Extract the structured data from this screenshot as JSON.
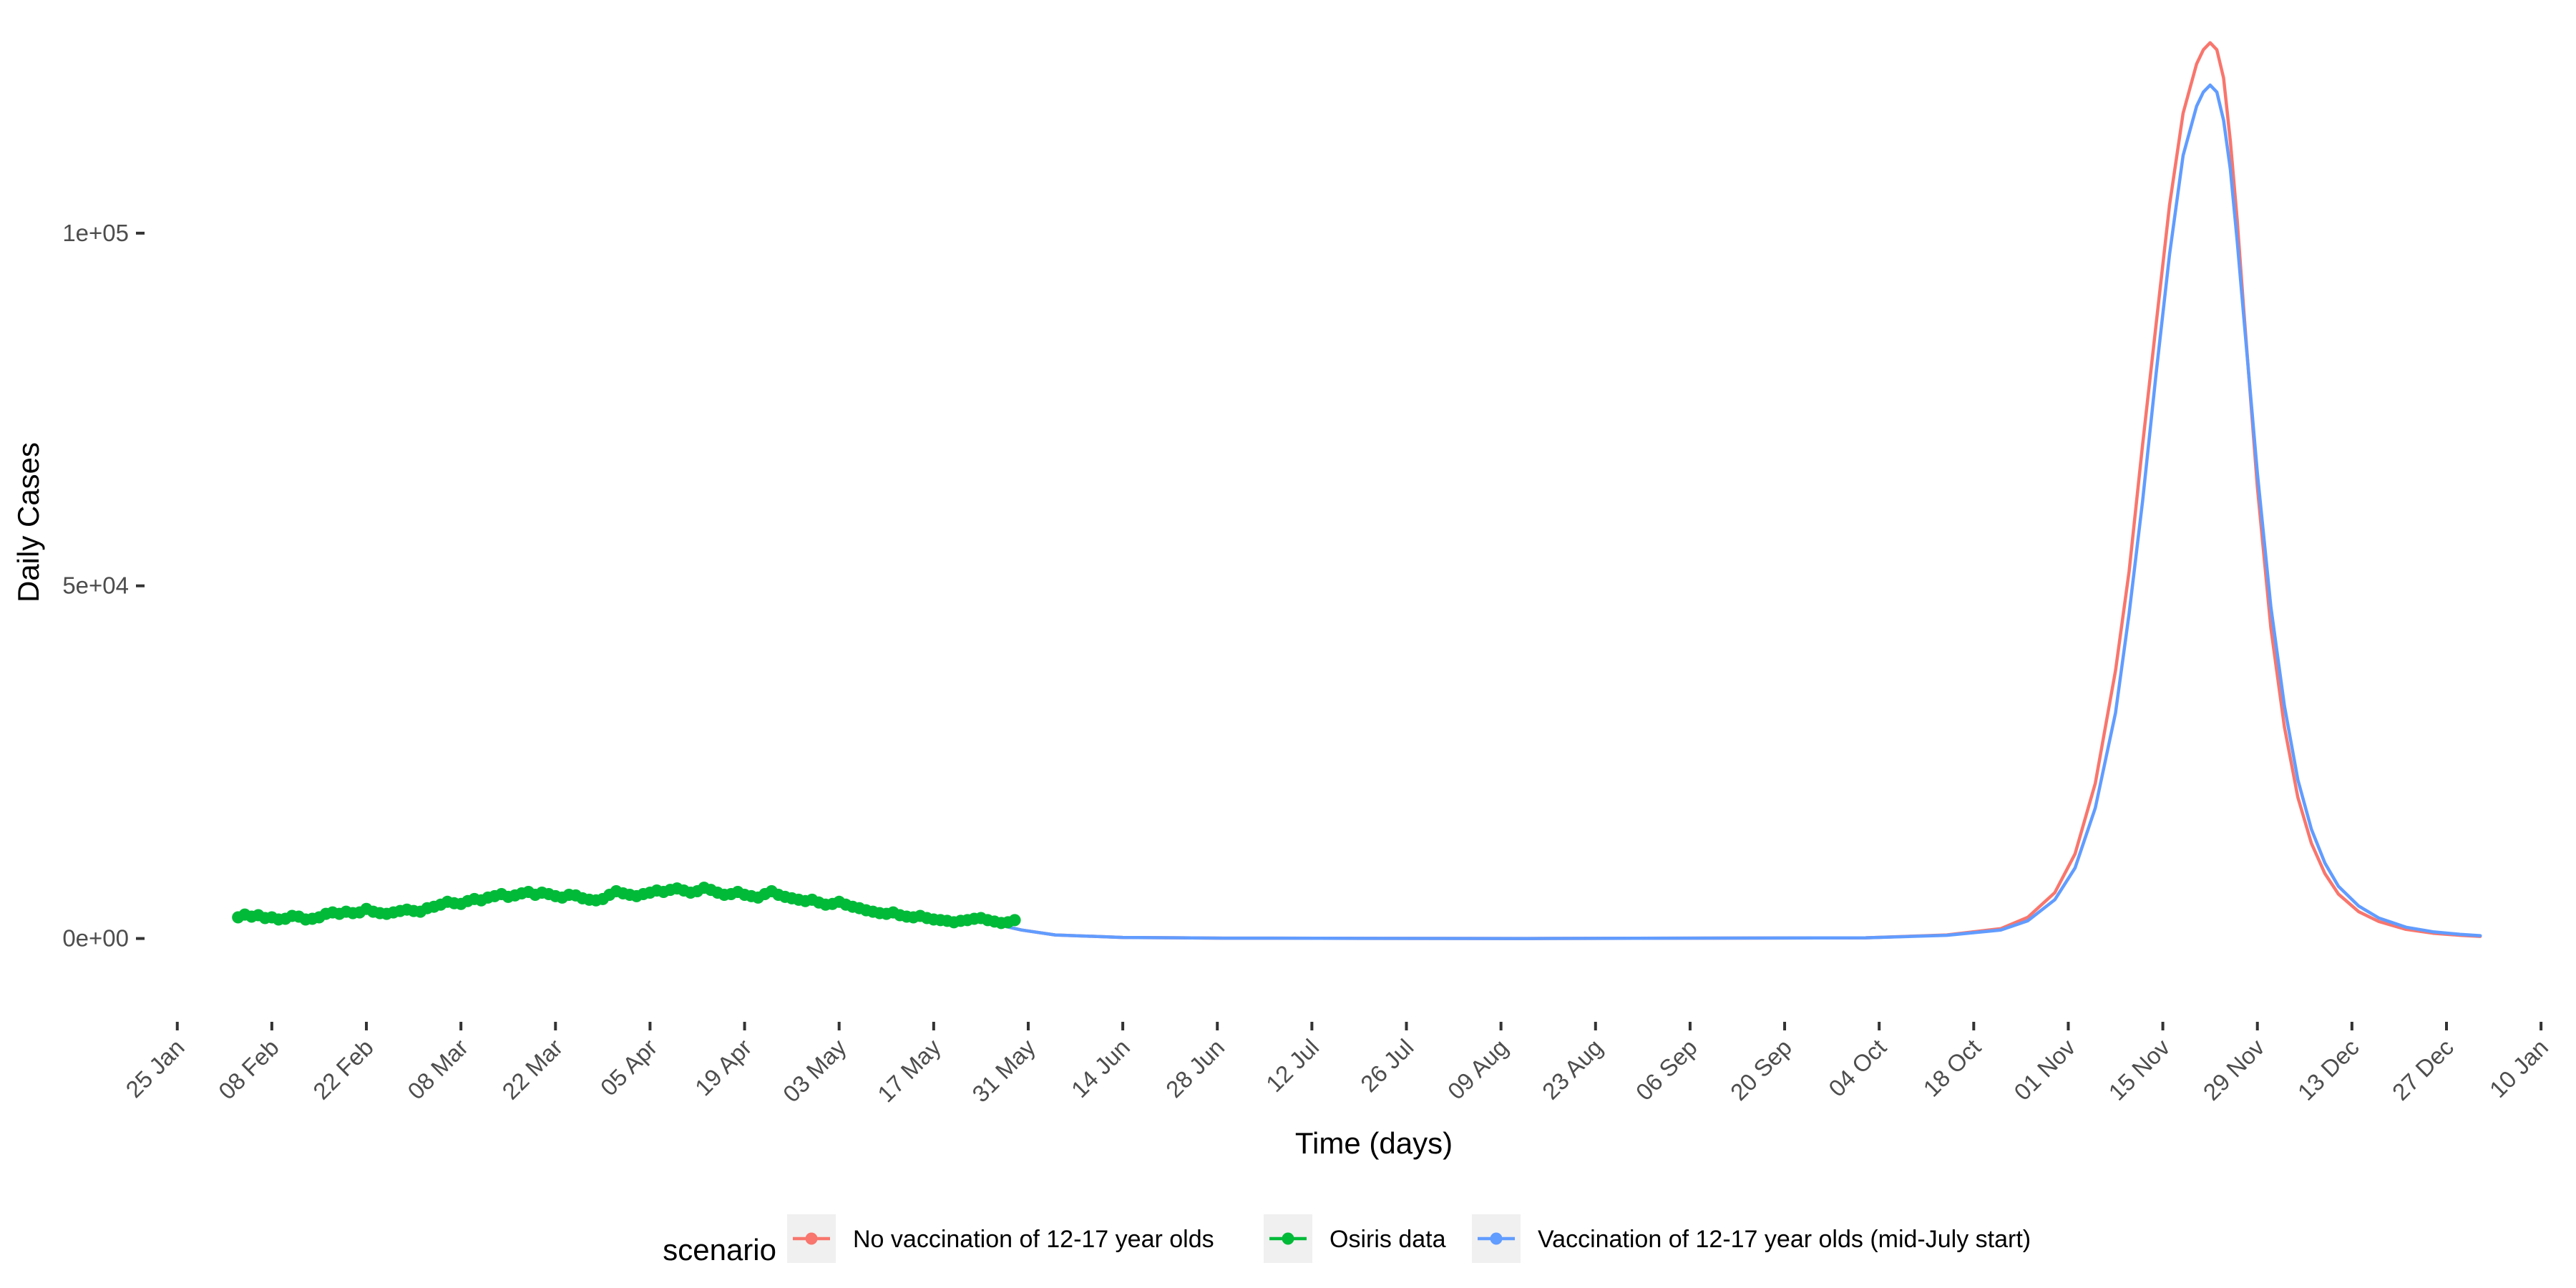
{
  "chart_data": {
    "type": "line",
    "title": "",
    "xlabel": "Time (days)",
    "ylabel": "Daily Cases",
    "grid": false,
    "legend_position": "bottom",
    "legend_title": "scenario",
    "x_range_days_from_25_Jan": [
      -4,
      352
    ],
    "ylim": [
      -11000,
      129000
    ],
    "y_ticks": [
      {
        "value": 0,
        "label": "0e+00"
      },
      {
        "value": 50000,
        "label": "5e+04"
      },
      {
        "value": 100000,
        "label": "1e+05"
      }
    ],
    "x_ticks": [
      {
        "day": 0,
        "label": "25 Jan"
      },
      {
        "day": 14,
        "label": "08 Feb"
      },
      {
        "day": 28,
        "label": "22 Feb"
      },
      {
        "day": 42,
        "label": "08 Mar"
      },
      {
        "day": 56,
        "label": "22 Mar"
      },
      {
        "day": 70,
        "label": "05 Apr"
      },
      {
        "day": 84,
        "label": "19 Apr"
      },
      {
        "day": 98,
        "label": "03 May"
      },
      {
        "day": 112,
        "label": "17 May"
      },
      {
        "day": 126,
        "label": "31 May"
      },
      {
        "day": 140,
        "label": "14 Jun"
      },
      {
        "day": 154,
        "label": "28 Jun"
      },
      {
        "day": 168,
        "label": "12 Jul"
      },
      {
        "day": 182,
        "label": "26 Jul"
      },
      {
        "day": 196,
        "label": "09 Aug"
      },
      {
        "day": 210,
        "label": "23 Aug"
      },
      {
        "day": 224,
        "label": "06 Sep"
      },
      {
        "day": 238,
        "label": "20 Sep"
      },
      {
        "day": 252,
        "label": "04 Oct"
      },
      {
        "day": 266,
        "label": "18 Oct"
      },
      {
        "day": 280,
        "label": "01 Nov"
      },
      {
        "day": 294,
        "label": "15 Nov"
      },
      {
        "day": 308,
        "label": "29 Nov"
      },
      {
        "day": 322,
        "label": "13 Dec"
      },
      {
        "day": 336,
        "label": "27 Dec"
      },
      {
        "day": 350,
        "label": "10 Jan"
      }
    ],
    "series": [
      {
        "name": "No vaccination of 12-17 year olds",
        "color": "#F8766D",
        "kind": "line",
        "x": [
          119,
          125,
          130,
          140,
          155,
          200,
          250,
          262,
          270,
          274,
          278,
          281,
          284,
          287,
          289,
          291,
          293,
          295,
          297,
          299,
          300,
          301,
          302,
          303,
          304,
          305,
          306,
          308,
          310,
          312,
          314,
          316,
          318,
          320,
          323,
          326,
          330,
          334,
          338,
          341
        ],
        "y": [
          2500,
          1200,
          500,
          150,
          50,
          0,
          100,
          500,
          1400,
          3000,
          6500,
          12000,
          22000,
          38000,
          52000,
          70000,
          87000,
          104000,
          117000,
          124000,
          126000,
          127000,
          126000,
          122000,
          113000,
          102000,
          89000,
          64000,
          44000,
          30000,
          20000,
          13500,
          9200,
          6300,
          3800,
          2400,
          1300,
          750,
          450,
          300
        ]
      },
      {
        "name": "Osiris data",
        "color": "#00BA38",
        "kind": "points",
        "x": [
          9,
          10,
          11,
          12,
          13,
          14,
          15,
          16,
          17,
          18,
          19,
          20,
          21,
          22,
          23,
          24,
          25,
          26,
          27,
          28,
          29,
          30,
          31,
          32,
          33,
          34,
          35,
          36,
          37,
          38,
          39,
          40,
          41,
          42,
          43,
          44,
          45,
          46,
          47,
          48,
          49,
          50,
          51,
          52,
          53,
          54,
          55,
          56,
          57,
          58,
          59,
          60,
          61,
          62,
          63,
          64,
          65,
          66,
          67,
          68,
          69,
          70,
          71,
          72,
          73,
          74,
          75,
          76,
          77,
          78,
          79,
          80,
          81,
          82,
          83,
          84,
          85,
          86,
          87,
          88,
          89,
          90,
          91,
          92,
          93,
          94,
          95,
          96,
          97,
          98,
          99,
          100,
          101,
          102,
          103,
          104,
          105,
          106,
          107,
          108,
          109,
          110,
          111,
          112,
          113,
          114,
          115,
          116,
          117,
          118,
          119,
          120,
          121,
          122,
          123,
          124
        ],
        "y": [
          3000,
          3400,
          3100,
          3300,
          2900,
          3000,
          2700,
          2800,
          3200,
          3100,
          2700,
          2800,
          3000,
          3500,
          3700,
          3500,
          3800,
          3600,
          3700,
          4200,
          3800,
          3600,
          3500,
          3700,
          3900,
          4100,
          3900,
          3800,
          4300,
          4500,
          4800,
          5200,
          5000,
          4900,
          5300,
          5600,
          5400,
          5800,
          6000,
          6300,
          5900,
          6100,
          6400,
          6600,
          6200,
          6500,
          6300,
          6000,
          5800,
          6200,
          6100,
          5700,
          5500,
          5400,
          5600,
          6200,
          6700,
          6400,
          6200,
          6000,
          6300,
          6500,
          6800,
          6600,
          6900,
          7100,
          6800,
          6500,
          6700,
          7200,
          6900,
          6500,
          6200,
          6300,
          6600,
          6200,
          6000,
          5800,
          6300,
          6700,
          6200,
          5900,
          5700,
          5500,
          5300,
          5500,
          5100,
          4800,
          4900,
          5200,
          4800,
          4500,
          4300,
          4000,
          3800,
          3600,
          3500,
          3700,
          3300,
          3100,
          3000,
          3200,
          2900,
          2700,
          2600,
          2500,
          2300,
          2500,
          2600,
          2800,
          2900,
          2600,
          2400,
          2200,
          2300,
          2600
        ]
      },
      {
        "name": "Vaccination of 12-17 year olds (mid-July start)",
        "color": "#619CFF",
        "kind": "line",
        "x": [
          119,
          125,
          130,
          140,
          155,
          200,
          250,
          262,
          270,
          274,
          278,
          281,
          284,
          287,
          289,
          291,
          293,
          295,
          297,
          299,
          300,
          301,
          302,
          303,
          304,
          305,
          306,
          308,
          310,
          312,
          314,
          316,
          318,
          320,
          323,
          326,
          330,
          334,
          338,
          341
        ],
        "y": [
          2500,
          1200,
          500,
          150,
          50,
          0,
          100,
          450,
          1200,
          2500,
          5500,
          10000,
          18500,
          32000,
          46000,
          62000,
          80000,
          97000,
          111000,
          118000,
          120000,
          121000,
          120000,
          116000,
          109000,
          99000,
          88000,
          66000,
          47000,
          33000,
          22500,
          15500,
          10700,
          7400,
          4600,
          2900,
          1600,
          950,
          600,
          400
        ]
      }
    ]
  }
}
